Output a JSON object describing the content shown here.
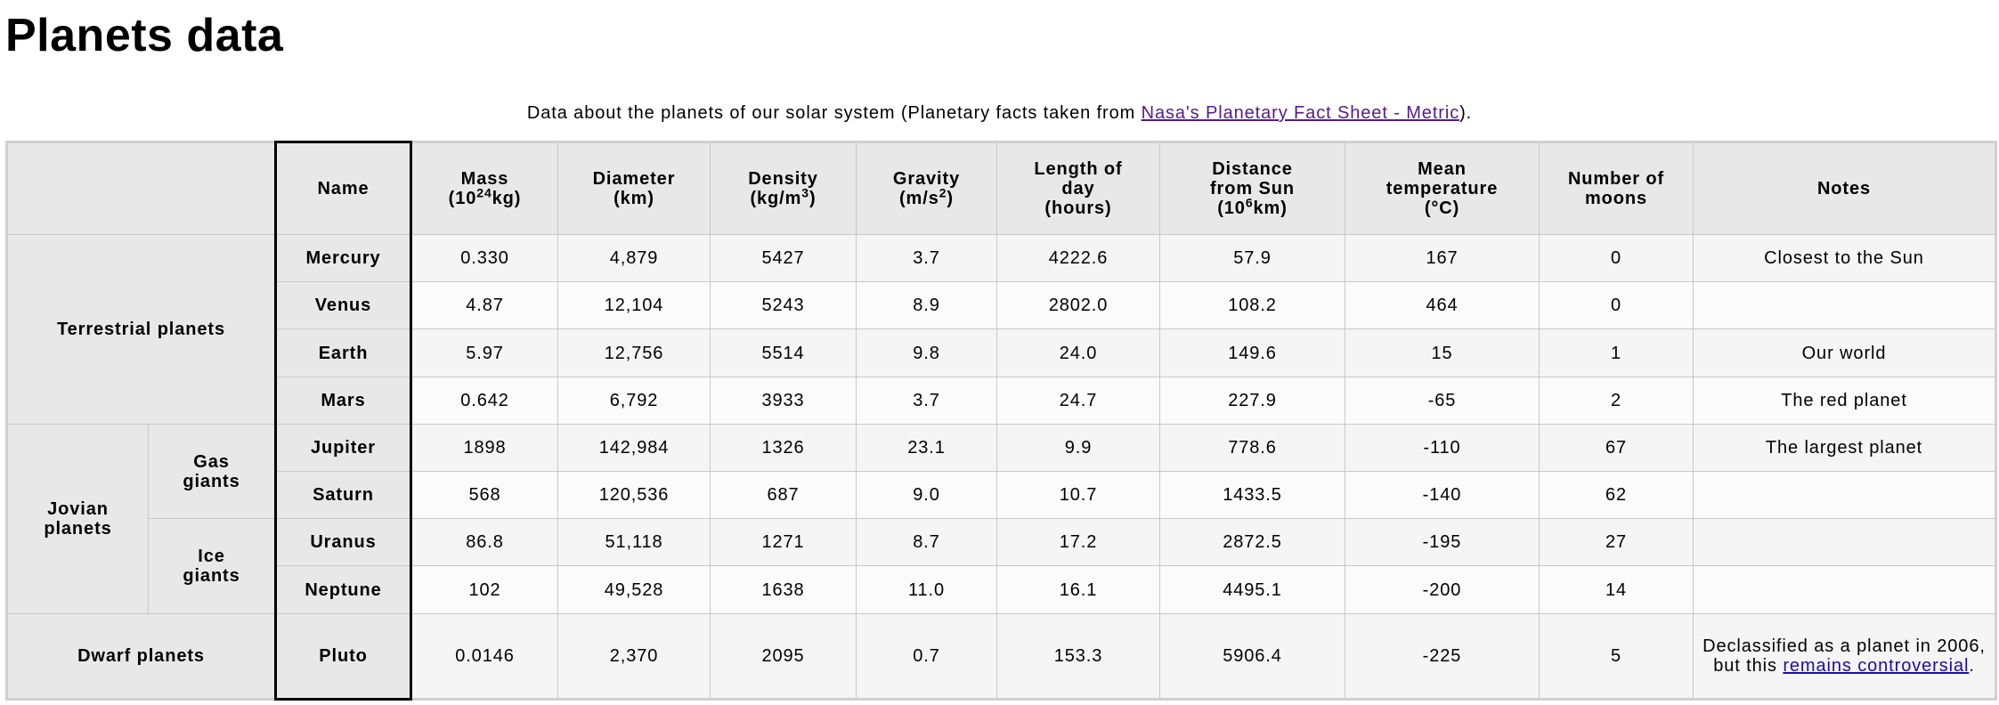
{
  "page": {
    "title": "Planets data",
    "caption_prefix": "Data about the planets of our solar system (Planetary facts taken from ",
    "caption_link": "Nasa's Planetary Fact Sheet - Metric",
    "caption_suffix": ")."
  },
  "headers": {
    "name": "Name",
    "mass_l1": "Mass",
    "mass_l2_pre": "(10",
    "mass_l2_sup": "24",
    "mass_l2_post": "kg)",
    "diameter_l1": "Diameter",
    "diameter_l2": "(km)",
    "density_l1": "Density",
    "density_l2_pre": "(kg/m",
    "density_l2_sup": "3",
    "density_l2_post": ")",
    "gravity_l1": "Gravity",
    "gravity_l2_pre": "(m/s",
    "gravity_l2_sup": "2",
    "gravity_l2_post": ")",
    "day_l1": "Length of",
    "day_l2": "day",
    "day_l3": "(hours)",
    "dist_l1": "Distance",
    "dist_l2": "from Sun",
    "dist_l3_pre": "(10",
    "dist_l3_sup": "6",
    "dist_l3_post": "km)",
    "temp_l1": "Mean",
    "temp_l2": "temperature",
    "temp_l3": "(°C)",
    "moons_l1": "Number of",
    "moons_l2": "moons",
    "notes": "Notes"
  },
  "groups": {
    "terrestrial": "Terrestrial planets",
    "jovian_l1": "Jovian",
    "jovian_l2": "planets",
    "gas_l1": "Gas",
    "gas_l2": "giants",
    "ice_l1": "Ice",
    "ice_l2": "giants",
    "dwarf": "Dwarf planets"
  },
  "rows": [
    {
      "name": "Mercury",
      "mass": "0.330",
      "diameter": "4,879",
      "density": "5427",
      "gravity": "3.7",
      "day": "4222.6",
      "distance": "57.9",
      "temp": "167",
      "moons": "0",
      "notes": "Closest to the Sun"
    },
    {
      "name": "Venus",
      "mass": "4.87",
      "diameter": "12,104",
      "density": "5243",
      "gravity": "8.9",
      "day": "2802.0",
      "distance": "108.2",
      "temp": "464",
      "moons": "0",
      "notes": ""
    },
    {
      "name": "Earth",
      "mass": "5.97",
      "diameter": "12,756",
      "density": "5514",
      "gravity": "9.8",
      "day": "24.0",
      "distance": "149.6",
      "temp": "15",
      "moons": "1",
      "notes": "Our world"
    },
    {
      "name": "Mars",
      "mass": "0.642",
      "diameter": "6,792",
      "density": "3933",
      "gravity": "3.7",
      "day": "24.7",
      "distance": "227.9",
      "temp": "-65",
      "moons": "2",
      "notes": "The red planet"
    },
    {
      "name": "Jupiter",
      "mass": "1898",
      "diameter": "142,984",
      "density": "1326",
      "gravity": "23.1",
      "day": "9.9",
      "distance": "778.6",
      "temp": "-110",
      "moons": "67",
      "notes": "The largest planet"
    },
    {
      "name": "Saturn",
      "mass": "568",
      "diameter": "120,536",
      "density": "687",
      "gravity": "9.0",
      "day": "10.7",
      "distance": "1433.5",
      "temp": "-140",
      "moons": "62",
      "notes": ""
    },
    {
      "name": "Uranus",
      "mass": "86.8",
      "diameter": "51,118",
      "density": "1271",
      "gravity": "8.7",
      "day": "17.2",
      "distance": "2872.5",
      "temp": "-195",
      "moons": "27",
      "notes": ""
    },
    {
      "name": "Neptune",
      "mass": "102",
      "diameter": "49,528",
      "density": "1638",
      "gravity": "11.0",
      "day": "16.1",
      "distance": "4495.1",
      "temp": "-200",
      "moons": "14",
      "notes": ""
    },
    {
      "name": "Pluto",
      "mass": "0.0146",
      "diameter": "2,370",
      "density": "2095",
      "gravity": "0.7",
      "day": "153.3",
      "distance": "5906.4",
      "temp": "-225",
      "moons": "5",
      "notes_pre": "Declassified as a planet in 2006, but this ",
      "notes_link": "remains controversial",
      "notes_post": "."
    }
  ]
}
